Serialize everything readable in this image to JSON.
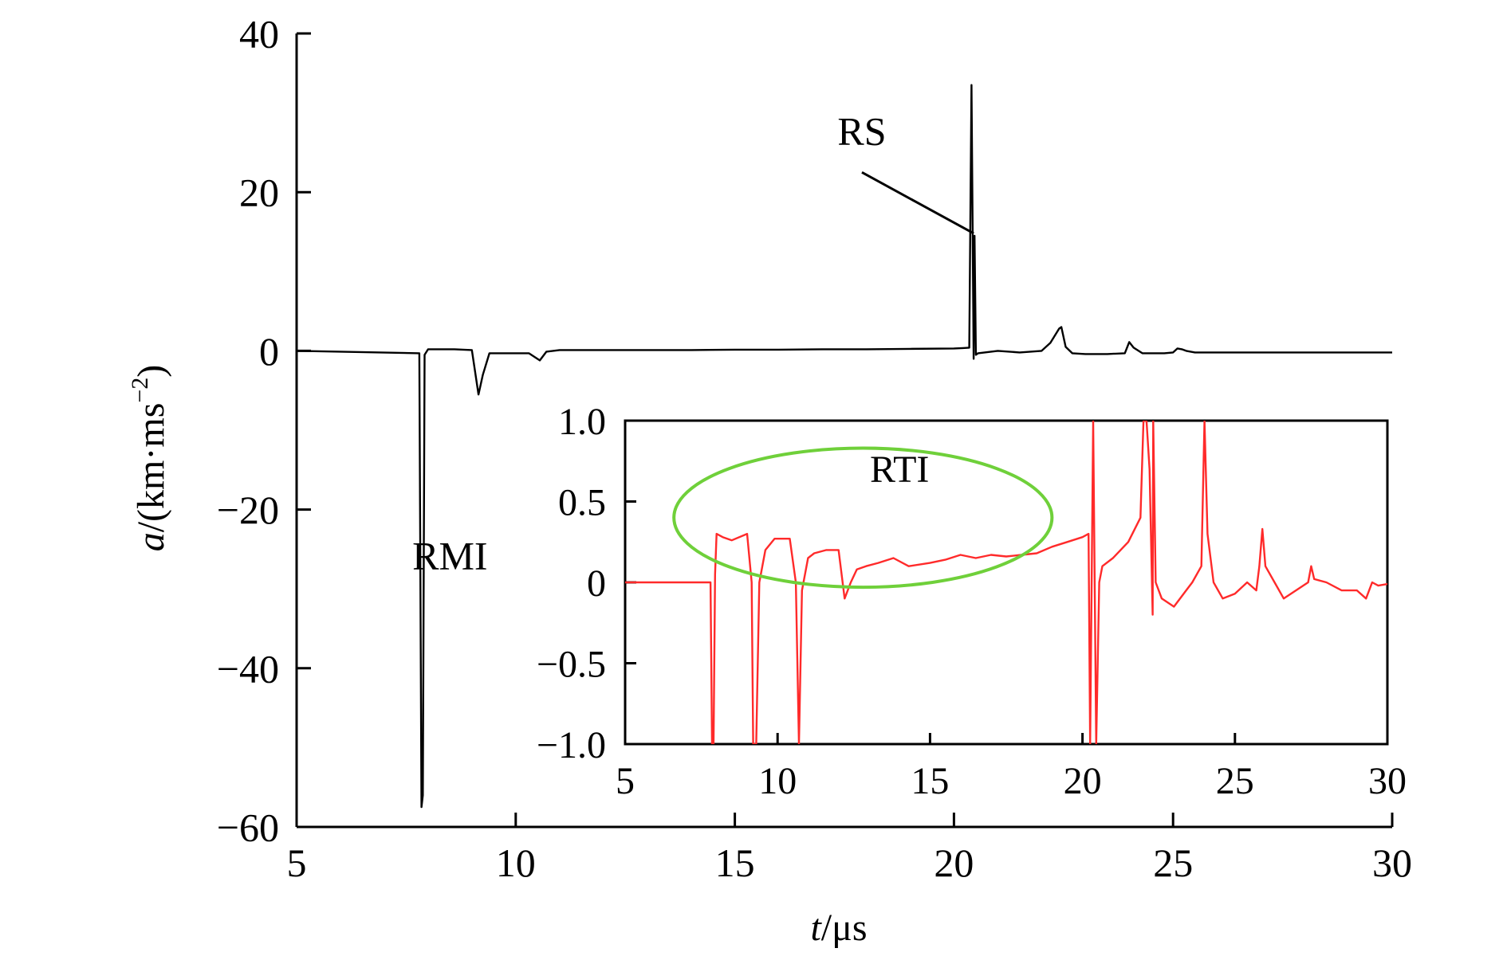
{
  "chart_data": [
    {
      "type": "line",
      "xlabel": {
        "var": "t",
        "unit": "/μs"
      },
      "ylabel": {
        "var": "a",
        "unit_pre": "/(km·ms",
        "unit_sup": "−2",
        "unit_post": ")"
      },
      "xlim": [
        5,
        30
      ],
      "ylim": [
        -60,
        40
      ],
      "xticks": [
        5,
        10,
        15,
        20,
        25,
        30
      ],
      "yticks": [
        40,
        20,
        0,
        -20,
        -40,
        -60
      ],
      "ytick_labels": [
        "40",
        "20",
        "0",
        "−20",
        "−40",
        "−60"
      ],
      "grid": false,
      "series_color": "#000000",
      "series": [
        {
          "x": [
            5.0,
            7.8,
            7.85,
            7.88,
            7.92,
            8.0,
            8.2,
            8.6,
            9.0,
            9.15,
            9.25,
            9.4,
            9.8,
            10.3,
            10.55,
            10.7,
            11.0,
            12.0,
            13.0,
            14.0,
            15.0,
            16.0,
            17.0,
            18.0,
            19.0,
            20.0,
            20.2,
            20.35,
            20.4,
            20.45,
            20.47,
            20.5,
            20.55,
            21.0,
            21.5,
            22.0,
            22.2,
            22.4,
            22.45,
            22.55,
            22.7,
            23.0,
            23.5,
            23.9,
            24.0,
            24.1,
            24.3,
            24.8,
            25.0,
            25.1,
            25.2,
            25.3,
            25.5,
            26.0,
            28.0,
            30.0
          ],
          "y": [
            0.0,
            -0.3,
            -57.5,
            -56.0,
            -0.5,
            0.2,
            0.2,
            0.2,
            0.1,
            -5.5,
            -3.0,
            -0.3,
            -0.3,
            -0.3,
            -1.2,
            -0.1,
            0.1,
            0.1,
            0.1,
            0.1,
            0.15,
            0.15,
            0.2,
            0.2,
            0.25,
            0.3,
            0.35,
            0.4,
            33.5,
            -1.0,
            14.5,
            -0.5,
            -0.3,
            0.0,
            -0.2,
            0.0,
            1.0,
            2.8,
            3.0,
            0.5,
            -0.3,
            -0.4,
            -0.4,
            -0.3,
            1.1,
            0.4,
            -0.3,
            -0.3,
            -0.2,
            0.3,
            0.2,
            0.0,
            -0.2,
            -0.2,
            -0.2,
            -0.2
          ]
        }
      ],
      "annotations": [
        {
          "text": "RS",
          "x": 17.9,
          "y": 26,
          "pointer_from": [
            17.9,
            22.5
          ],
          "pointer_to": [
            20.45,
            14.8
          ]
        },
        {
          "text": "RMI",
          "x": 8.5,
          "y": -27.5
        }
      ]
    },
    {
      "type": "line",
      "inset": true,
      "xlim": [
        5,
        30
      ],
      "ylim": [
        -1.0,
        1.0
      ],
      "xticks": [
        5,
        10,
        15,
        20,
        25,
        30
      ],
      "yticks": [
        1.0,
        0.5,
        0,
        -0.5,
        -1.0
      ],
      "ytick_labels": [
        "1.0",
        "0.5",
        "0",
        "−0.5",
        "−1.0"
      ],
      "grid": false,
      "series_color": "#ff2a2a",
      "series": [
        {
          "x": [
            5.0,
            7.8,
            7.85,
            7.9,
            7.95,
            8.0,
            8.2,
            8.5,
            9.0,
            9.15,
            9.2,
            9.3,
            9.4,
            9.6,
            9.9,
            10.4,
            10.6,
            10.7,
            10.8,
            11.0,
            11.2,
            11.6,
            12.0,
            12.2,
            12.4,
            12.6,
            12.9,
            13.3,
            13.8,
            14.3,
            15.0,
            15.5,
            16.0,
            16.5,
            17.0,
            17.5,
            18.0,
            18.5,
            19.0,
            19.5,
            20.0,
            20.2,
            20.25,
            20.35,
            20.45,
            20.55,
            20.65,
            21.0,
            21.5,
            21.9,
            22.0,
            22.1,
            22.2,
            22.3,
            22.32,
            22.4,
            22.6,
            23.0,
            23.4,
            23.6,
            23.9,
            24.0,
            24.1,
            24.3,
            24.6,
            25.0,
            25.4,
            25.7,
            25.8,
            25.9,
            26.0,
            26.3,
            26.6,
            27.0,
            27.4,
            27.5,
            27.6,
            28.0,
            28.5,
            29.0,
            29.3,
            29.5,
            29.7,
            30.0
          ],
          "y": [
            0.0,
            0.0,
            -1.0,
            -1.0,
            0.05,
            0.3,
            0.28,
            0.26,
            0.3,
            0.0,
            -1.0,
            -1.0,
            0.0,
            0.2,
            0.27,
            0.27,
            0.0,
            -1.0,
            -0.05,
            0.15,
            0.18,
            0.2,
            0.2,
            -0.1,
            0.0,
            0.08,
            0.1,
            0.12,
            0.15,
            0.1,
            0.12,
            0.14,
            0.17,
            0.15,
            0.17,
            0.16,
            0.17,
            0.18,
            0.22,
            0.25,
            0.28,
            0.3,
            -1.0,
            1.0,
            -1.0,
            0.0,
            0.1,
            0.15,
            0.25,
            0.4,
            1.0,
            1.0,
            0.7,
            -0.2,
            1.0,
            0.0,
            -0.1,
            -0.15,
            -0.05,
            0.0,
            0.1,
            1.0,
            0.3,
            0.0,
            -0.1,
            -0.07,
            0.0,
            -0.05,
            0.1,
            0.33,
            0.1,
            0.0,
            -0.1,
            -0.05,
            0.0,
            0.1,
            0.02,
            0.0,
            -0.05,
            -0.05,
            -0.1,
            0.0,
            -0.02,
            -0.01
          ]
        }
      ],
      "annotations": [
        {
          "text": "RTI",
          "x": 14.0,
          "y": 0.62
        }
      ],
      "ellipse": {
        "cx": 12.8,
        "cy": 0.4,
        "rx_data": 6.2,
        "ry_data": 0.43,
        "color": "#6fd03a"
      }
    }
  ]
}
